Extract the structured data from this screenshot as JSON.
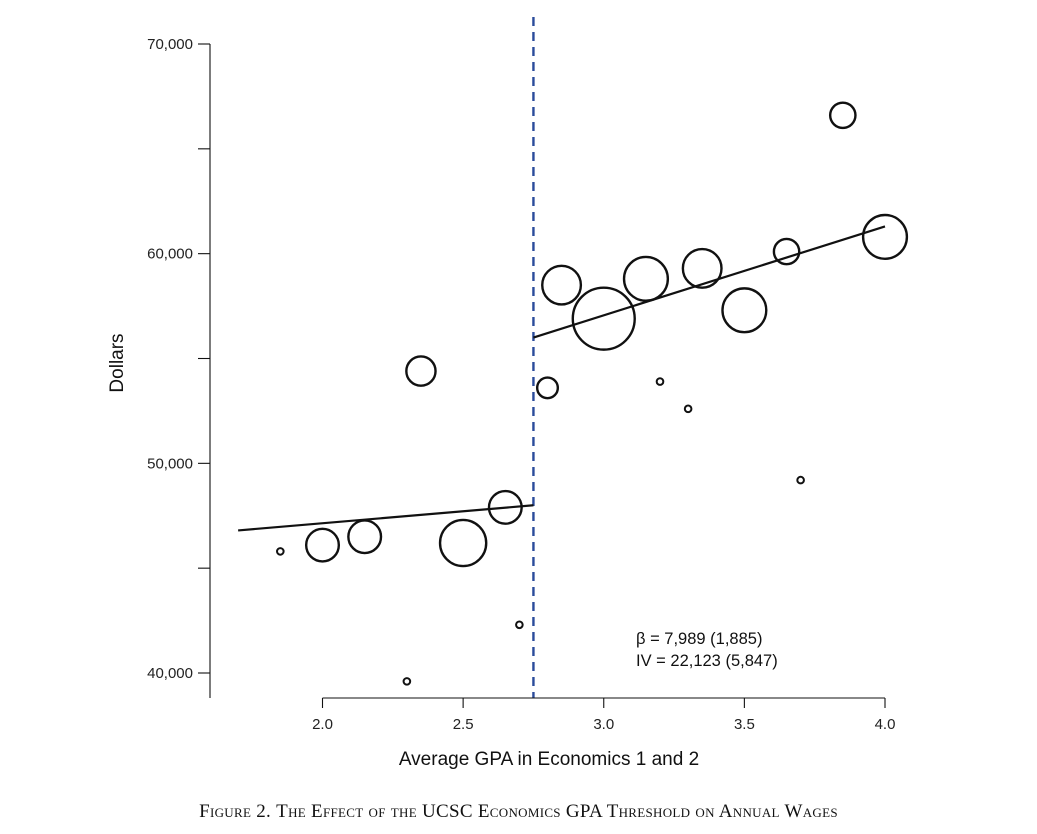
{
  "caption": {
    "label": "Figure 2.",
    "text": "The Effect of the UCSC Economics GPA Threshold on Annual Wages"
  },
  "colors": {
    "threshold": "#2a4b9b",
    "ink": "#111111"
  },
  "chart_data": {
    "type": "scatter",
    "title": "",
    "xlabel": "Average GPA in Economics 1 and 2",
    "ylabel": "Dollars",
    "xlim": [
      1.6,
      4.0
    ],
    "ylim": [
      38800,
      70000
    ],
    "xticks": [
      2.0,
      2.5,
      3.0,
      3.5,
      4.0
    ],
    "xtick_labels": [
      "2.0",
      "2.5",
      "3.0",
      "3.5",
      "4.0"
    ],
    "yticks": [
      40000,
      45000,
      50000,
      55000,
      60000,
      65000,
      70000
    ],
    "ytick_labels": [
      "40,000",
      "",
      "50,000",
      "",
      "60,000",
      "",
      "70,000"
    ],
    "grid": false,
    "marker_size_note": "marker area proportional to number of observations",
    "points": [
      {
        "x": 1.85,
        "y": 45800,
        "size": 1
      },
      {
        "x": 2.0,
        "y": 46100,
        "size": 5
      },
      {
        "x": 2.15,
        "y": 46500,
        "size": 5
      },
      {
        "x": 2.3,
        "y": 39600,
        "size": 1
      },
      {
        "x": 2.35,
        "y": 54400,
        "size": 4
      },
      {
        "x": 2.5,
        "y": 46200,
        "size": 10
      },
      {
        "x": 2.65,
        "y": 47900,
        "size": 5
      },
      {
        "x": 2.7,
        "y": 42300,
        "size": 1
      },
      {
        "x": 2.8,
        "y": 53600,
        "size": 2
      },
      {
        "x": 2.85,
        "y": 58500,
        "size": 7
      },
      {
        "x": 3.0,
        "y": 56900,
        "size": 18
      },
      {
        "x": 3.15,
        "y": 58800,
        "size": 9
      },
      {
        "x": 3.2,
        "y": 53900,
        "size": 1
      },
      {
        "x": 3.3,
        "y": 52600,
        "size": 1
      },
      {
        "x": 3.35,
        "y": 59300,
        "size": 7
      },
      {
        "x": 3.5,
        "y": 57300,
        "size": 9
      },
      {
        "x": 3.65,
        "y": 60100,
        "size": 3
      },
      {
        "x": 3.7,
        "y": 49200,
        "size": 1
      },
      {
        "x": 3.85,
        "y": 66600,
        "size": 3
      },
      {
        "x": 4.0,
        "y": 60800,
        "size": 9
      }
    ],
    "fit_lines": [
      {
        "name": "below threshold",
        "x": [
          1.7,
          2.75
        ],
        "y": [
          46800,
          48000
        ]
      },
      {
        "name": "above threshold",
        "x": [
          2.75,
          4.0
        ],
        "y": [
          56000,
          61300
        ]
      }
    ],
    "threshold": {
      "x": 2.75,
      "style": "dashed"
    },
    "annotations": [
      {
        "name": "beta",
        "text": "β = 7,989 (1,885)"
      },
      {
        "name": "iv",
        "text": "IV = 22,123 (5,847)"
      }
    ]
  }
}
